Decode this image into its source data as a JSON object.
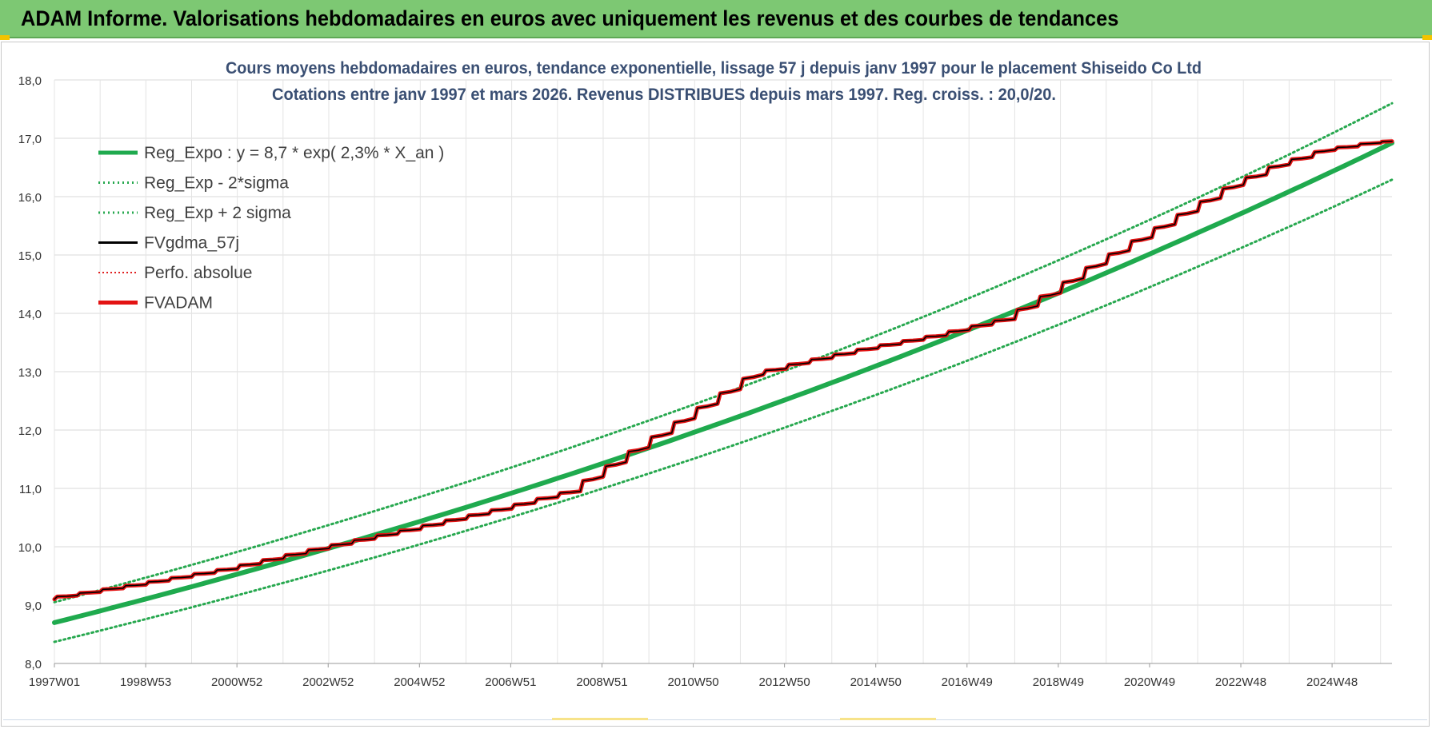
{
  "banner": {
    "title": "ADAM Informe. Valorisations hebdomadaires en euros avec uniquement les revenus et des courbes de tendances"
  },
  "colors": {
    "banner_bg": "#7dc873",
    "reg_expo": "#1faa4e",
    "band": "#27a84f",
    "fvgdma": "#000000",
    "perfo": "#e02020",
    "fvadam": "#e31313",
    "grid": "#d9d9d9",
    "title_text": "#3a4f73"
  },
  "chart_data": {
    "type": "line",
    "title": "Cours moyens hebdomadaires en euros, tendance exponentielle, lissage 57 j depuis janv 1997  pour le placement Shiseido Co Ltd",
    "subtitle": "Cotations entre janv 1997 et mars 2026. Revenus DISTRIBUES depuis mars 1997. Reg. croiss. : 20,0/20.",
    "xlabel": "",
    "ylabel": "",
    "x_tick_labels": [
      "1997W01",
      "1998W53",
      "2000W52",
      "2002W52",
      "2004W52",
      "2006W51",
      "2008W51",
      "2010W50",
      "2012W50",
      "2014W50",
      "2016W49",
      "2018W49",
      "2020W49",
      "2022W48",
      "2024W48"
    ],
    "x_range_years": [
      1997.0,
      2026.25
    ],
    "y_tick_labels": [
      "8,0",
      "9,0",
      "10,0",
      "11,0",
      "12,0",
      "13,0",
      "14,0",
      "15,0",
      "16,0",
      "17,0",
      "18,0"
    ],
    "ylim": [
      8,
      18
    ],
    "grid": true,
    "legend_position": "top-left",
    "legend": [
      "Reg_Expo : y = 8,7 * exp( 2,3% *  X_an )",
      "Reg_Exp - 2*sigma",
      "Reg_Exp + 2 sigma",
      "FVgdma_57j",
      "Perfo. absolue",
      "FVADAM"
    ],
    "series": [
      {
        "name": "Reg_Expo : y = 8,7 * exp( 2,3% *  X_an )",
        "style": "solid-thick",
        "x": [
          1997.0,
          2002.0,
          2007.0,
          2012.0,
          2017.0,
          2022.0,
          2026.25
        ],
        "values": [
          8.7,
          9.75,
          10.92,
          12.24,
          13.72,
          15.38,
          16.92
        ]
      },
      {
        "name": "Reg_Exp - 2*sigma",
        "style": "dotted",
        "x": [
          1997.0,
          2002.0,
          2007.0,
          2012.0,
          2017.0,
          2022.0,
          2026.25
        ],
        "values": [
          8.37,
          9.38,
          10.51,
          11.78,
          13.2,
          14.8,
          16.29
        ]
      },
      {
        "name": "Reg_Exp + 2 sigma",
        "style": "dotted",
        "x": [
          1997.0,
          2002.0,
          2007.0,
          2012.0,
          2017.0,
          2022.0,
          2026.25
        ],
        "values": [
          9.05,
          10.14,
          11.36,
          12.73,
          14.26,
          15.98,
          17.6
        ]
      },
      {
        "name": "FVgdma_57j",
        "style": "solid-thin",
        "x": [
          1997.0,
          1999.0,
          2001.0,
          2003.0,
          2005.0,
          2007.0,
          2008.5,
          2009.5,
          2010.5,
          2011.5,
          2012.5,
          2013.5,
          2015.0,
          2016.5,
          2018.0,
          2019.0,
          2020.0,
          2021.0,
          2022.0,
          2023.0,
          2024.0,
          2025.0,
          2026.25
        ],
        "values": [
          9.1,
          9.35,
          9.62,
          9.97,
          10.3,
          10.65,
          10.95,
          11.45,
          11.95,
          12.45,
          12.95,
          13.15,
          13.4,
          13.62,
          13.9,
          14.35,
          14.85,
          15.3,
          15.75,
          16.2,
          16.55,
          16.8,
          16.95
        ]
      },
      {
        "name": "Perfo. absolue",
        "style": "dotted",
        "x": [],
        "values": []
      },
      {
        "name": "FVADAM",
        "style": "solid-thick-stepped",
        "x": [
          1997.0,
          1999.0,
          2001.0,
          2003.0,
          2005.0,
          2007.0,
          2008.5,
          2009.5,
          2010.5,
          2011.5,
          2012.5,
          2013.5,
          2015.0,
          2016.5,
          2018.0,
          2019.0,
          2020.0,
          2021.0,
          2022.0,
          2023.0,
          2024.0,
          2025.0,
          2026.25
        ],
        "values": [
          9.1,
          9.35,
          9.62,
          9.97,
          10.3,
          10.65,
          10.95,
          11.45,
          11.95,
          12.45,
          12.95,
          13.15,
          13.4,
          13.62,
          13.9,
          14.35,
          14.85,
          15.3,
          15.75,
          16.2,
          16.55,
          16.8,
          16.95
        ]
      }
    ]
  }
}
